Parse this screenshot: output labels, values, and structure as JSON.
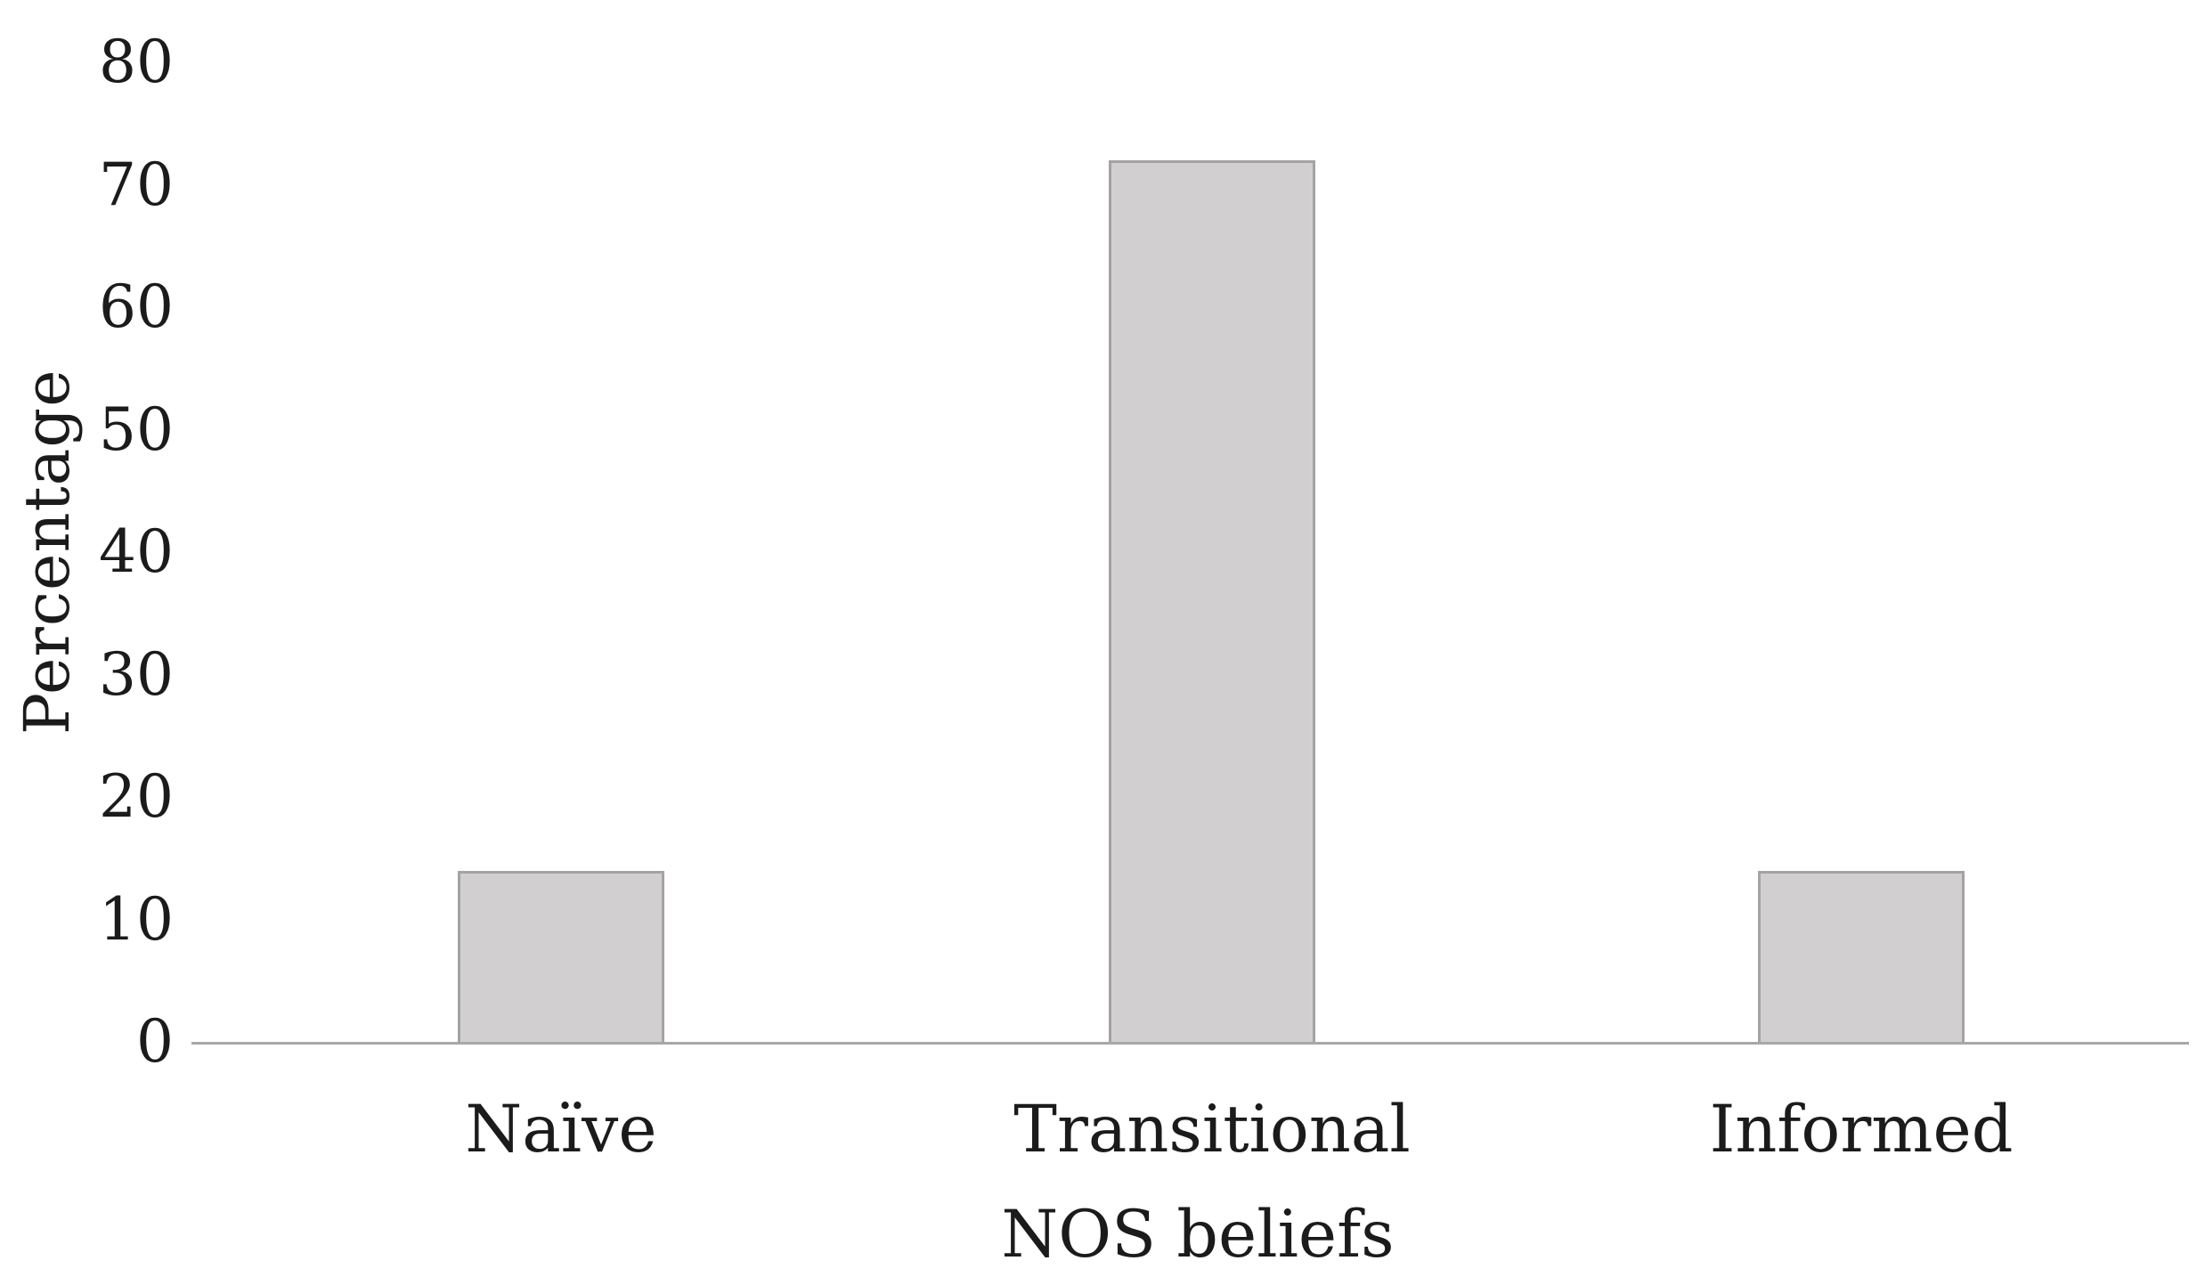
{
  "chart_data": {
    "type": "bar",
    "title": "",
    "categories": [
      "Naïve",
      "Transitional",
      "Informed"
    ],
    "values": [
      14,
      72,
      14
    ],
    "xlabel": "NOS beliefs",
    "ylabel": "Percentage",
    "ylim": [
      0,
      80
    ],
    "yticks": [
      0,
      10,
      20,
      30,
      40,
      50,
      60,
      70,
      80
    ],
    "grid": false,
    "legend": "none",
    "bar_fill_color": "#d1cfcf",
    "bar_border_color": "#a5a2a2",
    "axis_line_color": "#a8a8a8",
    "text_color": "#1b1b1b"
  }
}
